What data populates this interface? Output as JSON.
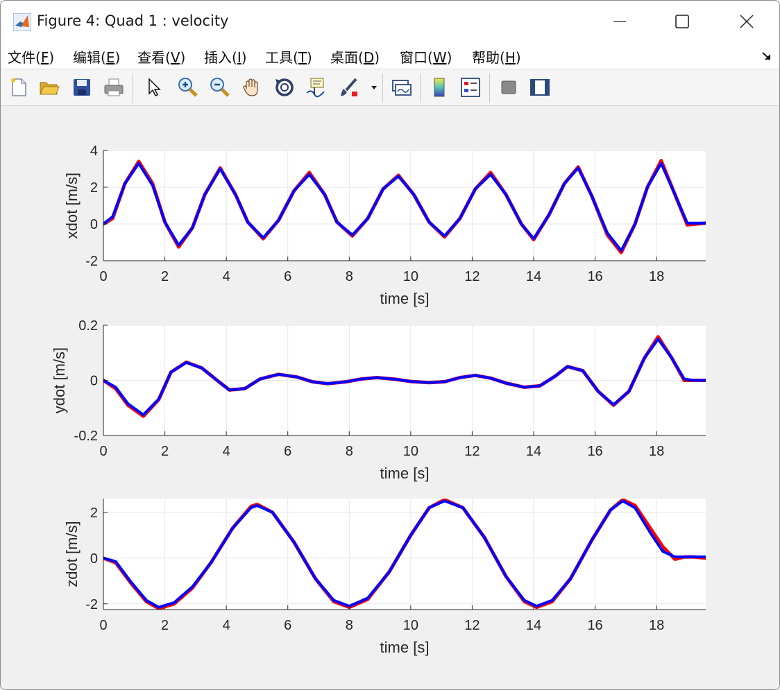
{
  "window": {
    "title": "Figure 4: Quad 1 : velocity",
    "minimize_label": "",
    "maximize_label": "",
    "close_label": ""
  },
  "menu": [
    {
      "label": "文件(",
      "key": "F",
      "suffix": ")"
    },
    {
      "label": "编辑(",
      "key": "E",
      "suffix": ")"
    },
    {
      "label": "查看(",
      "key": "V",
      "suffix": ")"
    },
    {
      "label": "插入(",
      "key": "I",
      "suffix": ")"
    },
    {
      "label": "工具(",
      "key": "T",
      "suffix": ")"
    },
    {
      "label": "桌面(",
      "key": "D",
      "suffix": ")"
    },
    {
      "label": "窗口(",
      "key": "W",
      "suffix": ")"
    },
    {
      "label": "帮助(",
      "key": "H",
      "suffix": ")"
    }
  ],
  "toolbar": {
    "icons": [
      "new-file-icon",
      "open-folder-icon",
      "save-icon",
      "print-icon",
      "pointer-icon",
      "zoom-in-icon",
      "zoom-out-icon",
      "pan-hand-icon",
      "rotate-3d-icon",
      "data-cursor-icon",
      "brush-icon",
      "brush-dropdown-icon",
      "link-plot-icon",
      "colorbar-icon",
      "legend-icon",
      "hide-plot-tools-icon",
      "show-plot-tools-icon"
    ]
  },
  "colors": {
    "reference_line": "#ff0000",
    "actual_line": "#0000ff",
    "grid": "#e6e6e6",
    "axes_bg": "#ffffff"
  },
  "chart_data": [
    {
      "type": "line",
      "title": "",
      "xlabel": "time [s]",
      "ylabel": "xdot [m/s]",
      "xlim": [
        0,
        19.6
      ],
      "ylim": [
        -2,
        4
      ],
      "xticks": [
        "0",
        "2",
        "4",
        "6",
        "8",
        "10",
        "12",
        "14",
        "16",
        "18"
      ],
      "yticks": [
        "-2",
        "0",
        "2",
        "4"
      ],
      "grid": true,
      "series": [
        {
          "color": "#ff0000",
          "x": [
            0,
            0.3,
            0.7,
            1.15,
            1.6,
            2.0,
            2.45,
            2.9,
            3.3,
            3.8,
            4.3,
            4.7,
            5.2,
            5.7,
            6.2,
            6.7,
            7.2,
            7.6,
            8.1,
            8.6,
            9.1,
            9.6,
            10.1,
            10.6,
            11.1,
            11.6,
            12.1,
            12.6,
            13.1,
            13.6,
            14.0,
            14.5,
            15.0,
            15.45,
            15.9,
            16.4,
            16.85,
            17.3,
            17.7,
            18.15,
            18.6,
            19.0,
            19.3,
            19.6
          ],
          "y": [
            0,
            0.3,
            2.2,
            3.4,
            2.2,
            0.1,
            -1.25,
            -0.2,
            1.6,
            3.05,
            1.6,
            0.1,
            -0.8,
            0.2,
            1.8,
            2.8,
            1.6,
            0.1,
            -0.65,
            0.3,
            1.9,
            2.65,
            1.6,
            0.1,
            -0.7,
            0.3,
            1.9,
            2.8,
            1.6,
            0.0,
            -0.85,
            0.5,
            2.2,
            3.1,
            1.5,
            -0.6,
            -1.55,
            0.0,
            2.0,
            3.45,
            1.6,
            -0.05,
            0.0,
            0.05
          ]
        },
        {
          "color": "#0000ff",
          "x": [
            0,
            0.3,
            0.7,
            1.15,
            1.6,
            2.0,
            2.45,
            2.9,
            3.3,
            3.8,
            4.3,
            4.7,
            5.2,
            5.7,
            6.2,
            6.7,
            7.2,
            7.6,
            8.1,
            8.6,
            9.1,
            9.6,
            10.1,
            10.6,
            11.1,
            11.6,
            12.1,
            12.6,
            13.1,
            13.6,
            14.0,
            14.5,
            15.0,
            15.45,
            15.9,
            16.4,
            16.85,
            17.3,
            17.7,
            18.15,
            18.6,
            19.0,
            19.3,
            19.6
          ],
          "y": [
            0,
            0.4,
            2.2,
            3.3,
            2.1,
            0.1,
            -1.15,
            -0.2,
            1.6,
            3.0,
            1.6,
            0.1,
            -0.75,
            0.2,
            1.8,
            2.7,
            1.6,
            0.1,
            -0.6,
            0.3,
            1.9,
            2.6,
            1.6,
            0.1,
            -0.65,
            0.3,
            1.9,
            2.7,
            1.6,
            0.0,
            -0.8,
            0.5,
            2.2,
            3.05,
            1.5,
            -0.5,
            -1.45,
            0.0,
            2.0,
            3.3,
            1.6,
            0.05,
            0.05,
            0.05
          ]
        }
      ]
    },
    {
      "type": "line",
      "title": "",
      "xlabel": "time [s]",
      "ylabel": "ydot [m/s]",
      "xlim": [
        0,
        19.6
      ],
      "ylim": [
        -0.2,
        0.2
      ],
      "xticks": [
        "0",
        "2",
        "4",
        "6",
        "8",
        "10",
        "12",
        "14",
        "16",
        "18"
      ],
      "yticks": [
        "-0.2",
        "0",
        "0.2"
      ],
      "grid": true,
      "series": [
        {
          "color": "#ff0000",
          "x": [
            0,
            0.4,
            0.8,
            1.3,
            1.8,
            2.2,
            2.7,
            3.2,
            3.7,
            4.1,
            4.6,
            5.1,
            5.7,
            6.3,
            6.8,
            7.3,
            7.9,
            8.4,
            8.9,
            9.5,
            10.0,
            10.6,
            11.1,
            11.6,
            12.1,
            12.6,
            13.1,
            13.7,
            14.2,
            14.7,
            15.1,
            15.6,
            16.1,
            16.6,
            17.1,
            17.6,
            18.05,
            18.5,
            18.9,
            19.2,
            19.6
          ],
          "y": [
            0,
            -0.03,
            -0.09,
            -0.13,
            -0.07,
            0.03,
            0.066,
            0.045,
            0.0,
            -0.035,
            -0.03,
            0.005,
            0.022,
            0.012,
            -0.005,
            -0.012,
            -0.005,
            0.005,
            0.01,
            0.004,
            -0.004,
            -0.008,
            -0.005,
            0.01,
            0.018,
            0.008,
            -0.01,
            -0.025,
            -0.02,
            0.015,
            0.05,
            0.035,
            -0.04,
            -0.09,
            -0.04,
            0.08,
            0.158,
            0.08,
            0.0,
            0.0,
            0.0
          ]
        },
        {
          "color": "#0000ff",
          "x": [
            0,
            0.4,
            0.8,
            1.3,
            1.8,
            2.2,
            2.7,
            3.2,
            3.7,
            4.1,
            4.6,
            5.1,
            5.7,
            6.3,
            6.8,
            7.3,
            7.9,
            8.4,
            8.9,
            9.5,
            10.0,
            10.6,
            11.1,
            11.6,
            12.1,
            12.6,
            13.1,
            13.7,
            14.2,
            14.7,
            15.1,
            15.6,
            16.1,
            16.6,
            17.1,
            17.6,
            18.05,
            18.5,
            18.9,
            19.2,
            19.6
          ],
          "y": [
            0,
            -0.025,
            -0.085,
            -0.125,
            -0.068,
            0.03,
            0.065,
            0.045,
            0.0,
            -0.035,
            -0.03,
            0.005,
            0.022,
            0.012,
            -0.005,
            -0.012,
            -0.005,
            0.005,
            0.01,
            0.004,
            -0.004,
            -0.008,
            -0.005,
            0.01,
            0.018,
            0.008,
            -0.01,
            -0.025,
            -0.02,
            0.015,
            0.05,
            0.035,
            -0.04,
            -0.088,
            -0.04,
            0.08,
            0.15,
            0.08,
            0.005,
            0.0,
            0.0
          ]
        }
      ]
    },
    {
      "type": "line",
      "title": "",
      "xlabel": "time [s]",
      "ylabel": "zdot [m/s]",
      "xlim": [
        0,
        19.6
      ],
      "ylim": [
        -2.25,
        2.6
      ],
      "xticks": [
        "0",
        "2",
        "4",
        "6",
        "8",
        "10",
        "12",
        "14",
        "16",
        "18"
      ],
      "yticks": [
        "-2",
        "0",
        "2"
      ],
      "grid": true,
      "series": [
        {
          "color": "#ff0000",
          "x": [
            0,
            0.4,
            0.9,
            1.4,
            1.8,
            2.3,
            2.9,
            3.5,
            4.2,
            4.8,
            5.0,
            5.5,
            6.2,
            6.9,
            7.5,
            8.0,
            8.6,
            9.3,
            10.0,
            10.6,
            11.1,
            11.7,
            12.4,
            13.1,
            13.7,
            14.1,
            14.6,
            15.2,
            15.9,
            16.5,
            16.9,
            17.3,
            17.8,
            18.2,
            18.6,
            18.9,
            19.2,
            19.6
          ],
          "y": [
            0,
            -0.2,
            -1.1,
            -1.9,
            -2.2,
            -2.0,
            -1.3,
            -0.2,
            1.3,
            2.25,
            2.35,
            2.0,
            0.7,
            -0.9,
            -1.9,
            -2.15,
            -1.8,
            -0.6,
            1.0,
            2.2,
            2.55,
            2.2,
            0.9,
            -0.8,
            -1.9,
            -2.15,
            -1.9,
            -0.9,
            0.8,
            2.1,
            2.55,
            2.3,
            1.3,
            0.5,
            -0.05,
            0.05,
            0.05,
            0.0
          ]
        },
        {
          "color": "#0000ff",
          "x": [
            0,
            0.4,
            0.9,
            1.4,
            1.8,
            2.3,
            2.9,
            3.5,
            4.2,
            4.8,
            5.0,
            5.5,
            6.2,
            6.9,
            7.5,
            8.0,
            8.6,
            9.3,
            10.0,
            10.6,
            11.1,
            11.7,
            12.4,
            13.1,
            13.7,
            14.1,
            14.6,
            15.2,
            15.9,
            16.5,
            16.9,
            17.3,
            17.8,
            18.2,
            18.6,
            18.9,
            19.2,
            19.6
          ],
          "y": [
            0,
            -0.15,
            -1.05,
            -1.85,
            -2.15,
            -1.95,
            -1.25,
            -0.2,
            1.3,
            2.2,
            2.3,
            2.0,
            0.7,
            -0.9,
            -1.85,
            -2.1,
            -1.75,
            -0.6,
            1.0,
            2.2,
            2.5,
            2.2,
            0.9,
            -0.8,
            -1.85,
            -2.1,
            -1.85,
            -0.9,
            0.8,
            2.1,
            2.5,
            2.2,
            1.1,
            0.3,
            0.05,
            0.05,
            0.05,
            0.05
          ]
        }
      ]
    }
  ]
}
